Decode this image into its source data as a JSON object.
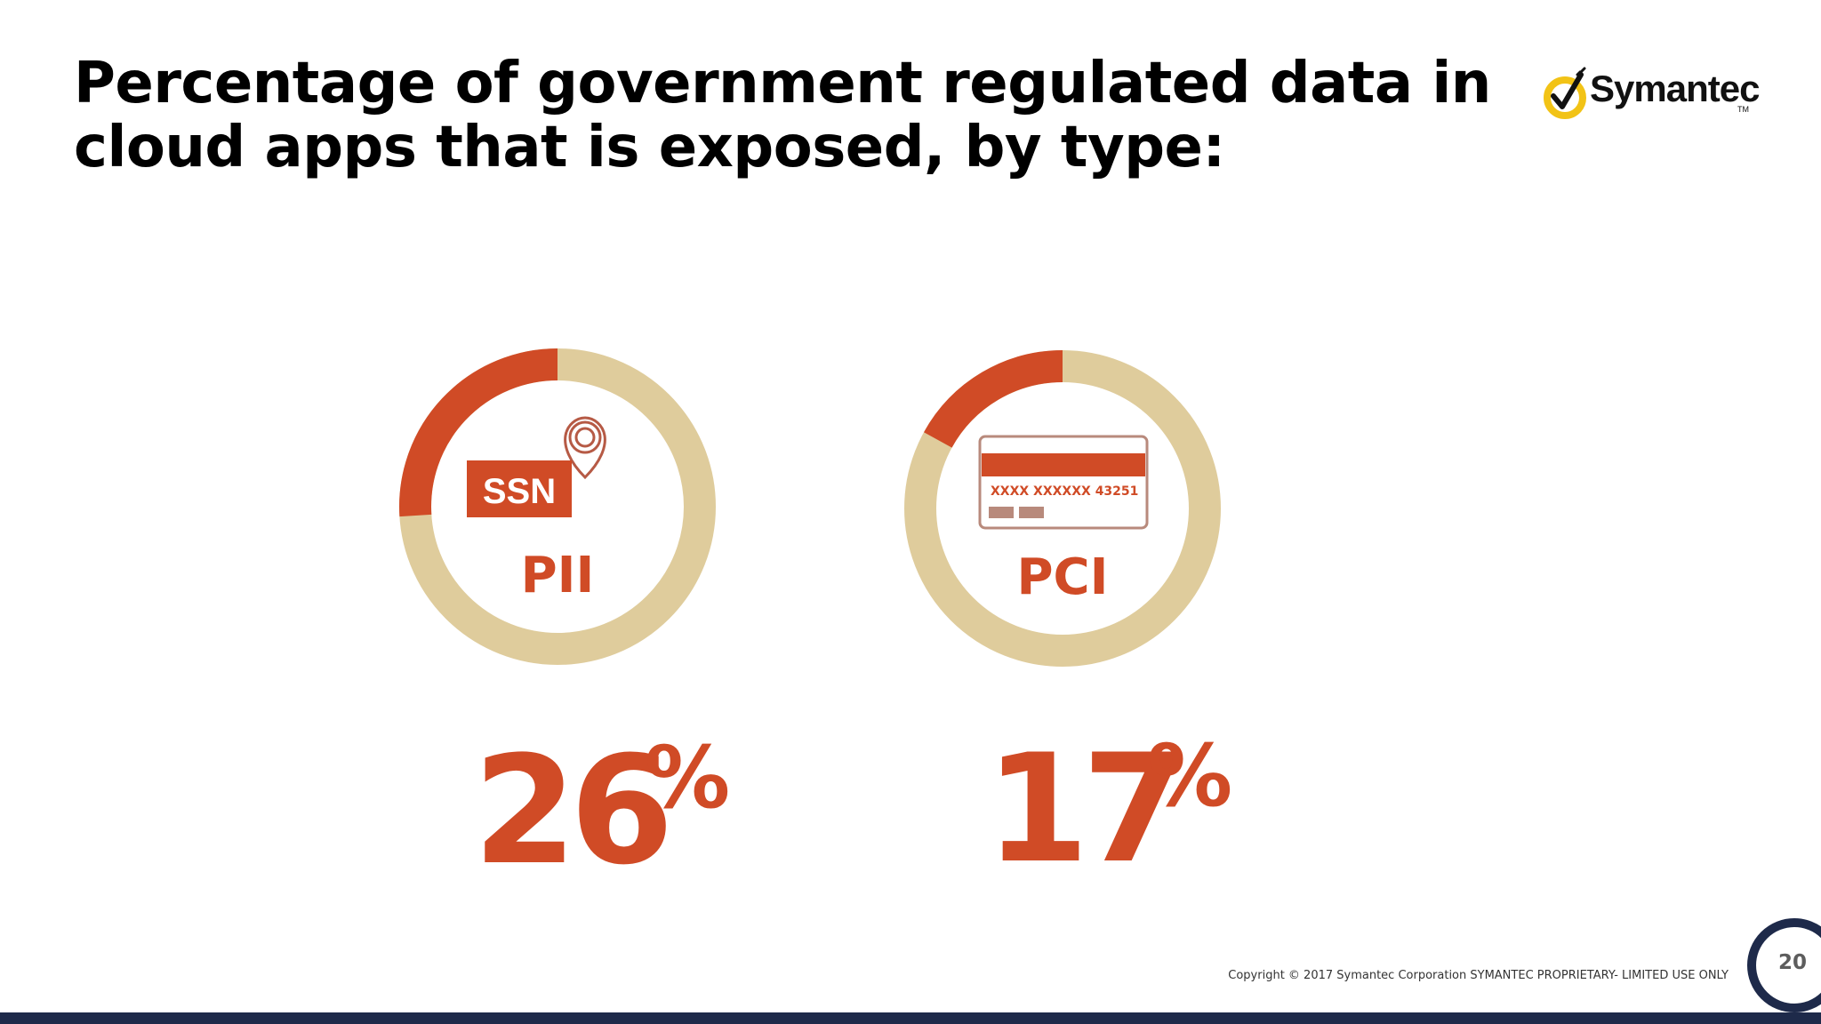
{
  "title": "Percentage of government regulated data in cloud apps that is exposed, by type:",
  "logo": {
    "text": "Symantec",
    "tm": "TM",
    "icon": "checkmark-circle-icon"
  },
  "colors": {
    "accent": "#d04b26",
    "ring_bg": "#dfcc9c",
    "card_stripe_light": "#b88a7c",
    "footer_bar": "#1e2a4a",
    "page_circle": "#1e2a4a"
  },
  "chart_data": {
    "type": "pie",
    "style": "donut",
    "categories": [
      "PII",
      "PCI"
    ],
    "values": [
      26,
      17
    ],
    "unit": "%",
    "items": [
      {
        "label": "PII",
        "value": 26,
        "value_text": "26",
        "percent_sign": "%",
        "icon": "ssn-badge-location-pin-icon",
        "badge_text": "SSN"
      },
      {
        "label": "PCI",
        "value": 17,
        "value_text": "17",
        "percent_sign": "%",
        "icon": "credit-card-icon",
        "card_number": "XXXX XXXXXX 43251"
      }
    ]
  },
  "footer": {
    "copyright": "Copyright © 2017 Symantec Corporation SYMANTEC PROPRIETARY- LIMITED USE ONLY",
    "page_number": "20"
  }
}
